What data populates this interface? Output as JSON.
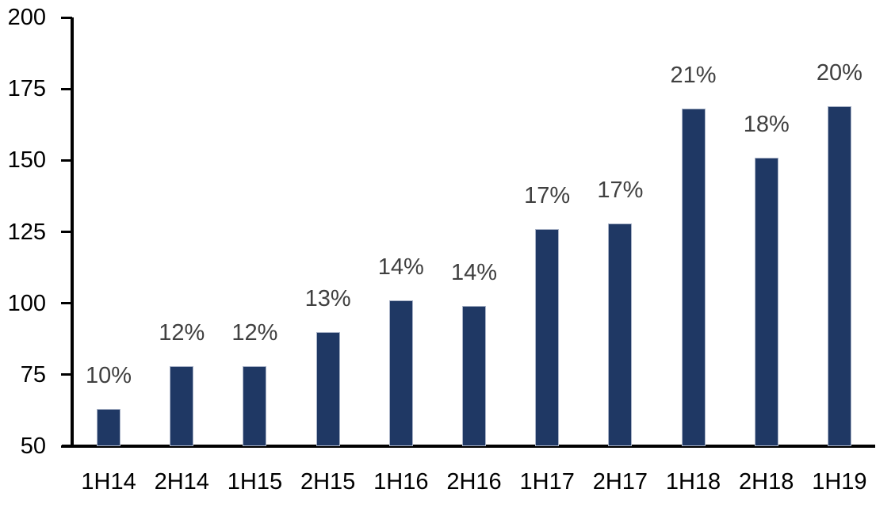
{
  "chart_data": {
    "type": "bar",
    "categories": [
      "1H14",
      "2H14",
      "1H15",
      "2H15",
      "1H16",
      "2H16",
      "1H17",
      "2H17",
      "1H18",
      "2H18",
      "1H19"
    ],
    "values": [
      63,
      78,
      78,
      90,
      101,
      99,
      126,
      128,
      168,
      151,
      169
    ],
    "bar_labels": [
      "10%",
      "12%",
      "12%",
      "13%",
      "14%",
      "14%",
      "17%",
      "17%",
      "21%",
      "18%",
      "20%"
    ],
    "title": "",
    "xlabel": "",
    "ylabel": "",
    "ylim": [
      50,
      200
    ],
    "yticks": [
      50,
      75,
      100,
      125,
      150,
      175,
      200
    ],
    "grid": false,
    "legend": "none",
    "colors": {
      "bar_fill": "#1f3864",
      "bar_border": "#aab4c8",
      "value_label": "#404040",
      "axis_line": "#000000",
      "tick_label": "#000000",
      "background": "#ffffff"
    }
  }
}
